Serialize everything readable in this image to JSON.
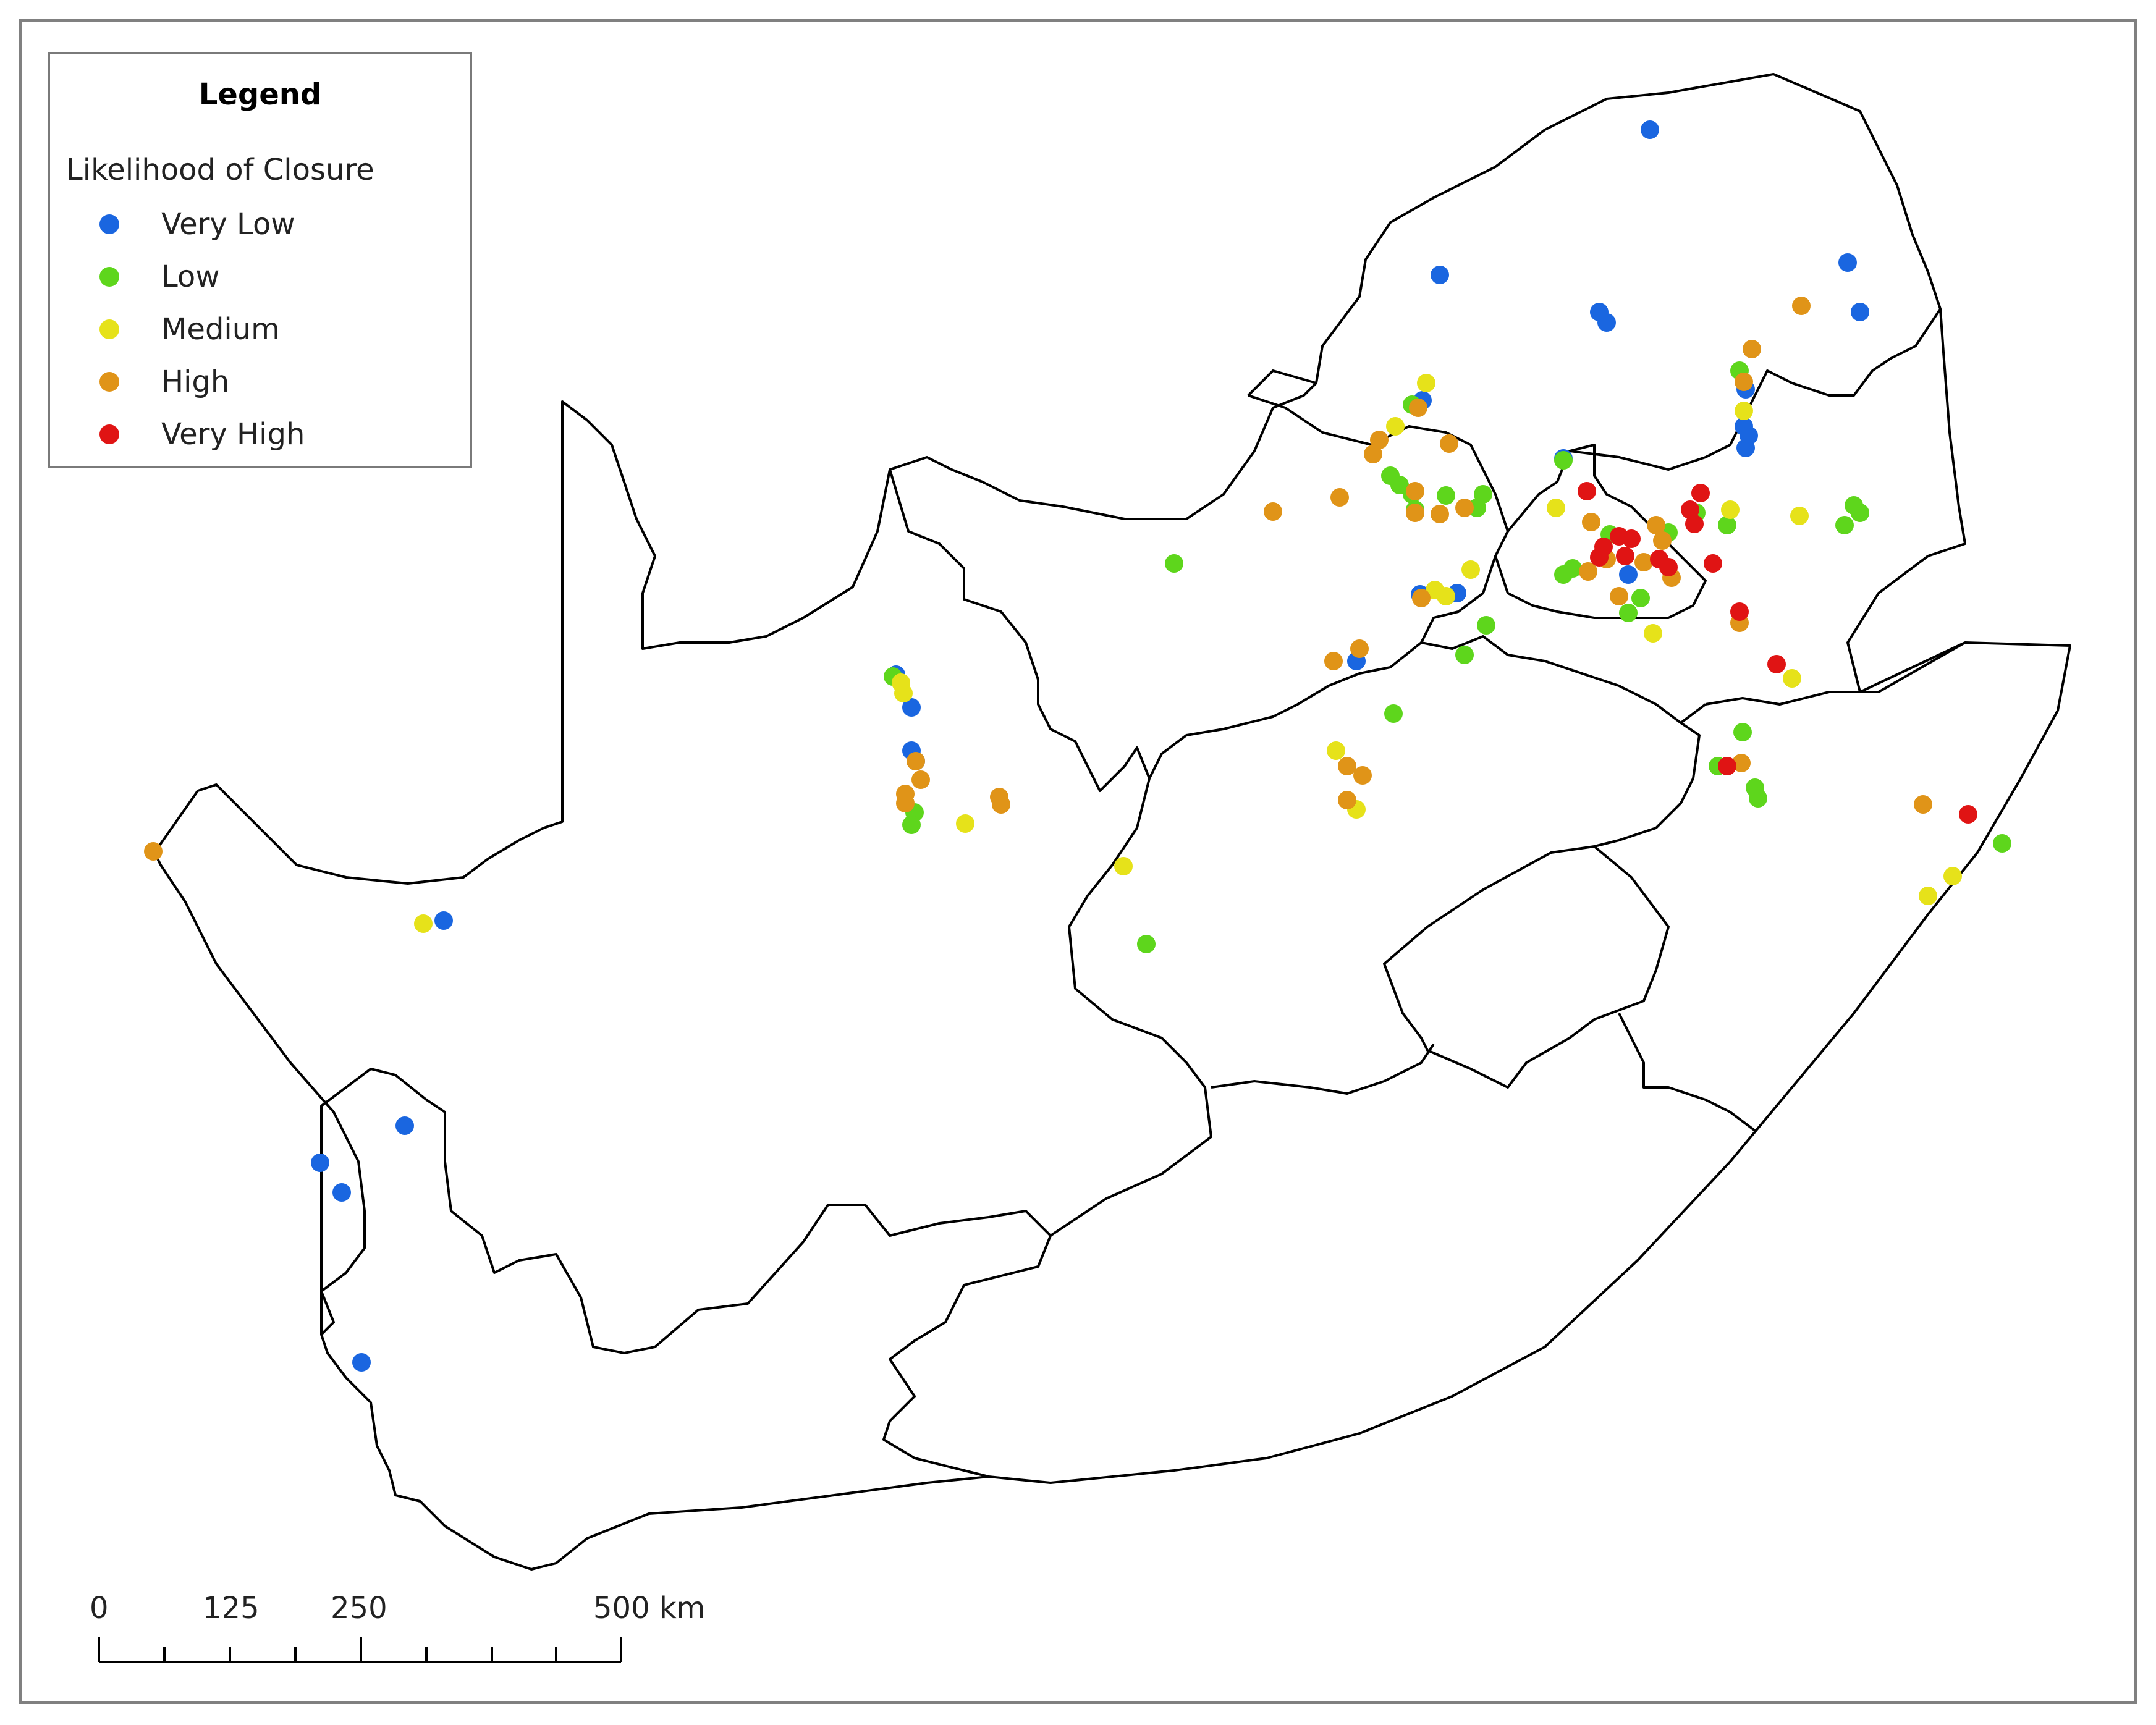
{
  "legend": {
    "title": "Legend",
    "subtitle": "Likelihood of Closure",
    "items": [
      {
        "label": "Very Low",
        "color": "#1a66e0"
      },
      {
        "label": "Low",
        "color": "#5ed61c"
      },
      {
        "label": "Medium",
        "color": "#e6e21a"
      },
      {
        "label": "High",
        "color": "#e09418"
      },
      {
        "label": "Very High",
        "color": "#e01414"
      }
    ]
  },
  "scale_bar": {
    "labels": [
      "0",
      "125",
      "250",
      "500 km"
    ]
  }
}
